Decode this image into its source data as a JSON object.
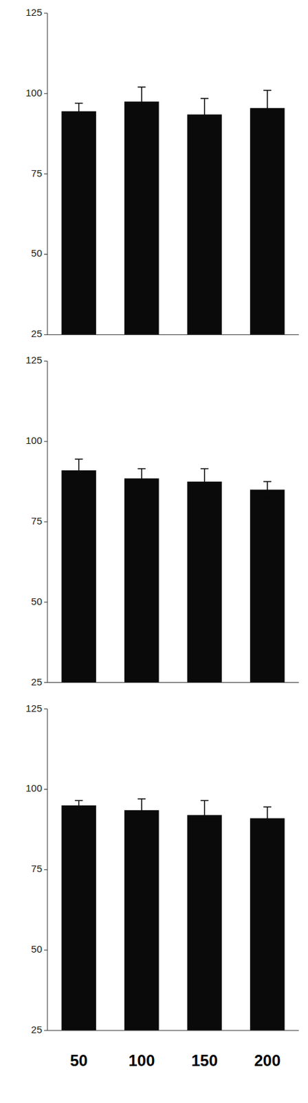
{
  "chart_data": [
    {
      "type": "bar",
      "categories": [
        null,
        null,
        null,
        null
      ],
      "values": [
        94.5,
        97.5,
        93.5,
        95.5
      ],
      "errors": [
        2.5,
        4.5,
        5.0,
        5.5
      ],
      "color": "#0a0a0a",
      "ylim": [
        25,
        125
      ],
      "yticks": [
        25,
        50,
        75,
        100,
        125
      ],
      "grid": false
    },
    {
      "type": "bar",
      "categories": [
        null,
        null,
        null,
        null
      ],
      "values": [
        91.0,
        88.5,
        87.5,
        85.0
      ],
      "errors": [
        3.5,
        3.0,
        4.0,
        2.5
      ],
      "color": "#0a0a0a",
      "ylim": [
        25,
        125
      ],
      "yticks": [
        25,
        50,
        75,
        100,
        125
      ],
      "grid": false
    },
    {
      "type": "bar",
      "categories": [
        "50",
        "100",
        "150",
        "200"
      ],
      "values": [
        95.0,
        93.5,
        92.0,
        91.0
      ],
      "errors": [
        1.5,
        3.5,
        4.5,
        3.5
      ],
      "color": "#0a0a0a",
      "ylim": [
        25,
        125
      ],
      "yticks": [
        25,
        50,
        75,
        100,
        125
      ],
      "grid": false
    }
  ]
}
